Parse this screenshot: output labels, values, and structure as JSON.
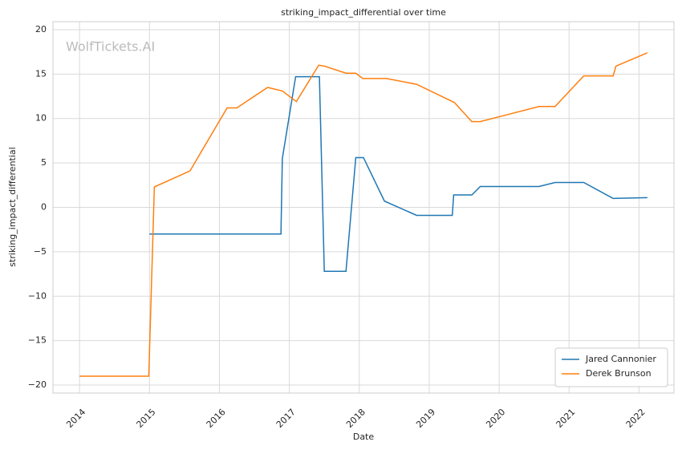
{
  "chart_data": {
    "type": "line",
    "title": "striking_impact_differential over time",
    "xlabel": "Date",
    "ylabel": "striking_impact_differential",
    "watermark": "WolfTickets.AI",
    "series": [
      {
        "name": "Jared Cannonier",
        "color": "#1f77b4",
        "x": [
          2015.0,
          2016.88,
          2016.9,
          2017.09,
          2017.43,
          2017.5,
          2017.81,
          2017.95,
          2018.06,
          2018.36,
          2018.82,
          2019.33,
          2019.35,
          2019.61,
          2019.73,
          2020.57,
          2020.8,
          2021.21,
          2021.63,
          2022.12
        ],
        "values": [
          -3,
          -3,
          5.5,
          14.7,
          14.7,
          -7.2,
          -7.2,
          5.6,
          5.6,
          0.7,
          -0.9,
          -0.9,
          1.4,
          1.4,
          2.35,
          2.35,
          2.8,
          2.8,
          1.0,
          1.1
        ]
      },
      {
        "name": "Derek Brunson",
        "color": "#ff7f0e",
        "x": [
          2014.0,
          2014.99,
          2015.07,
          2015.58,
          2016.11,
          2016.25,
          2016.69,
          2016.9,
          2017.1,
          2017.42,
          2017.5,
          2017.81,
          2017.95,
          2018.05,
          2018.39,
          2018.82,
          2019.36,
          2019.61,
          2019.73,
          2020.57,
          2020.8,
          2021.21,
          2021.63,
          2021.67,
          2022.12
        ],
        "values": [
          -19,
          -19,
          2.3,
          4.1,
          11.2,
          11.2,
          13.5,
          13.1,
          11.9,
          16.0,
          15.9,
          15.1,
          15.1,
          14.5,
          14.5,
          13.85,
          11.8,
          9.65,
          9.65,
          11.35,
          11.35,
          14.8,
          14.8,
          15.9,
          17.4
        ]
      }
    ],
    "xlim": [
      2013.62,
      2022.5
    ],
    "xticks": [
      2014,
      2015,
      2016,
      2017,
      2018,
      2019,
      2020,
      2021,
      2022
    ],
    "ylim": [
      -20.9,
      20.9
    ],
    "yticks": [
      {
        "value": -20,
        "label": "−20"
      },
      {
        "value": -15,
        "label": "−15"
      },
      {
        "value": -10,
        "label": "−10"
      },
      {
        "value": -5,
        "label": "−5"
      },
      0,
      5,
      10,
      15,
      20
    ],
    "grid": true,
    "legend": "lower right"
  }
}
